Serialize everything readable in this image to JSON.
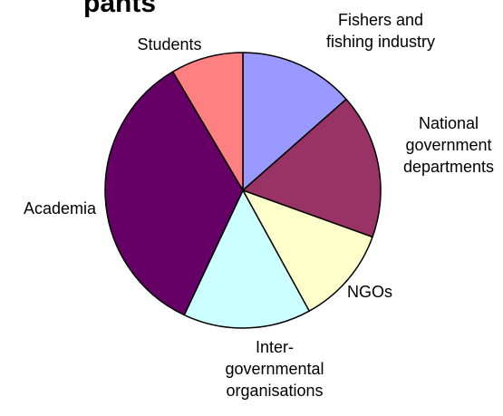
{
  "chart_data": {
    "type": "pie",
    "title": "",
    "title_fragment": "pants",
    "slices": [
      {
        "label_lines": [
          "Fishers and",
          "fishing industry"
        ],
        "value": 13.5,
        "color": "#9999ff"
      },
      {
        "label_lines": [
          "National",
          "government",
          "departments"
        ],
        "value": 17.0,
        "color": "#993366"
      },
      {
        "label_lines": [
          "NGOs"
        ],
        "value": 11.5,
        "color": "#ffffcc"
      },
      {
        "label_lines": [
          "Inter-",
          "governmental",
          "organisations"
        ],
        "value": 15.0,
        "color": "#ccffff"
      },
      {
        "label_lines": [
          "Academia"
        ],
        "value": 34.5,
        "color": "#660066"
      },
      {
        "label_lines": [
          "Students"
        ],
        "value": 8.5,
        "color": "#ff8080"
      }
    ],
    "legend": "none",
    "data_labels": "category names outside slices"
  }
}
